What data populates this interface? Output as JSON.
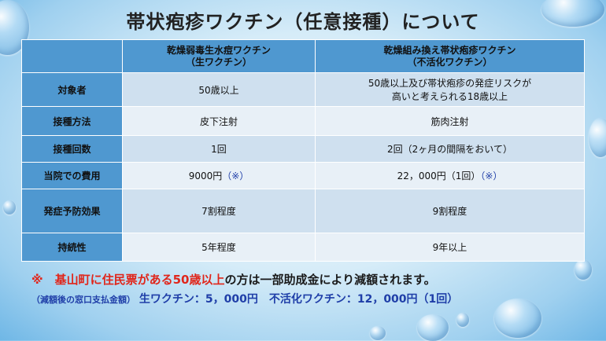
{
  "title": "帯状疱疹ワクチン（任意接種）について",
  "header": {
    "col1_line1": "乾燥弱毒生水痘ワクチン",
    "col1_line2": "（生ワクチン）",
    "col2_line1": "乾燥組み換え帯状疱疹ワクチン",
    "col2_line2": "（不活化ワクチン）"
  },
  "rows": [
    {
      "label": "対象者",
      "col1": "50歳以上",
      "col2_line1": "50歳以上及び帯状疱疹の発症リスクが",
      "col2_line2": "高いと考えられる18歳以上"
    },
    {
      "label": "接種方法",
      "col1": "皮下注射",
      "col2_line1": "筋肉注射",
      "col2_line2": ""
    },
    {
      "label": "接種回数",
      "col1": "1回",
      "col2_line1": "2回（2ヶ月の間隔をおいて）",
      "col2_line2": ""
    },
    {
      "label": "当院での費用",
      "col1": "9000円",
      "col1_note": "（※）",
      "col2_line1": "22，000円（1回）",
      "col2_note": "（※）"
    },
    {
      "label": "発症予防効果",
      "col1": "7割程度",
      "col2_line1": "9割程度",
      "col2_line2": ""
    },
    {
      "label": "持続性",
      "col1": "5年程度",
      "col2_line1": "9年以上",
      "col2_line2": ""
    }
  ],
  "footnote": {
    "mark": "※　",
    "red_text": "基山町に住民票がある50歳以上",
    "rest": "の方は一部助成金により減額されます。",
    "sub_label": "（減額後の窓口支払金額）",
    "sub_text": "生ワクチン：5，000円　不活化ワクチン：12，000円（1回）"
  }
}
